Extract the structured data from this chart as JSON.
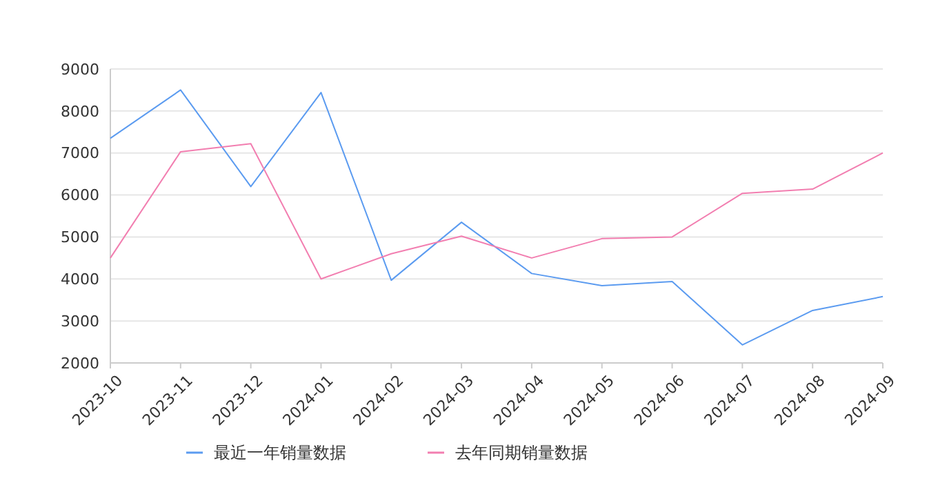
{
  "chart_data": {
    "type": "line",
    "categories": [
      "2023-10",
      "2023-11",
      "2023-12",
      "2024-01",
      "2024-02",
      "2024-03",
      "2024-04",
      "2024-05",
      "2024-06",
      "2024-07",
      "2024-08",
      "2024-09"
    ],
    "series": [
      {
        "name": "最近一年销量数据",
        "color": "#5b9bf0",
        "values": [
          7350,
          8500,
          6200,
          8440,
          3970,
          5350,
          4130,
          3840,
          3940,
          2430,
          3250,
          3580
        ]
      },
      {
        "name": "去年同期销量数据",
        "color": "#f27eb0",
        "values": [
          4500,
          7030,
          7220,
          4000,
          4600,
          5020,
          4500,
          4960,
          5000,
          6040,
          6140,
          7000
        ]
      }
    ],
    "ylim": [
      2000,
      9000
    ],
    "yticks": [
      2000,
      3000,
      4000,
      5000,
      6000,
      7000,
      8000,
      9000
    ],
    "grid": "y",
    "legend": "bottom",
    "marker": "none",
    "line_style": "solid"
  }
}
